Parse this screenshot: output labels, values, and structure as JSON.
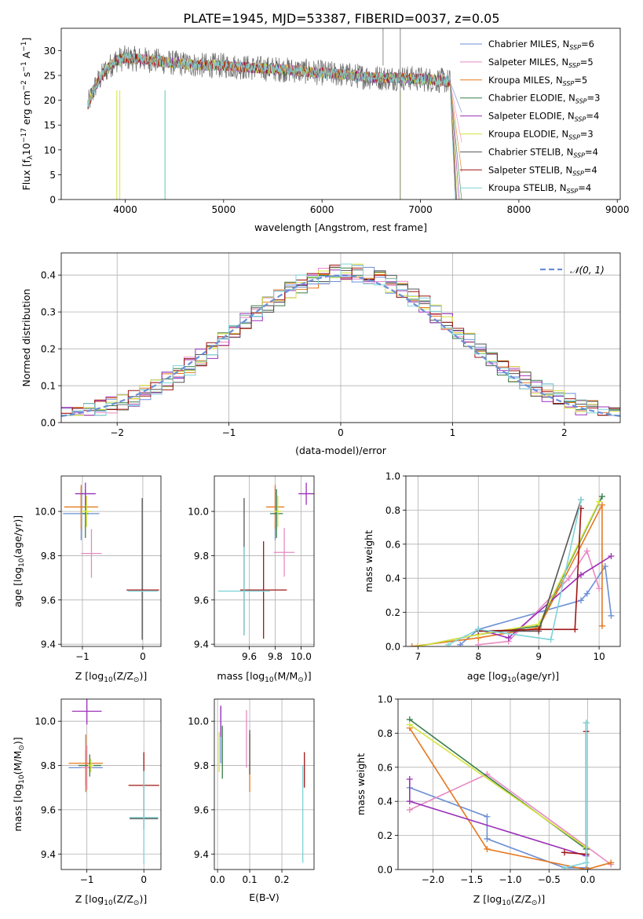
{
  "figure_title": "PLATE=1945, MJD=53387, FIBERID=0037, z=0.05",
  "legend": {
    "items": [
      {
        "label": "Chabrier MILES, N",
        "sub": "SSP",
        "suffix": "=6",
        "color": "#6b8fd6"
      },
      {
        "label": "Salpeter MILES, N",
        "sub": "SSP",
        "suffix": "=5",
        "color": "#e78ac3"
      },
      {
        "label": "Kroupa MILES, N",
        "sub": "SSP",
        "suffix": "=5",
        "color": "#e6781e"
      },
      {
        "label": "Chabrier ELODIE, N",
        "sub": "SSP",
        "suffix": "=3",
        "color": "#3a7d4a"
      },
      {
        "label": "Salpeter ELODIE, N",
        "sub": "SSP",
        "suffix": "=4",
        "color": "#9b30b8"
      },
      {
        "label": "Kroupa ELODIE, N",
        "sub": "SSP",
        "suffix": "=3",
        "color": "#d6e43c"
      },
      {
        "label": "Chabrier STELIB, N",
        "sub": "SSP",
        "suffix": "=4",
        "color": "#555555"
      },
      {
        "label": "Salpeter STELIB, N",
        "sub": "SSP",
        "suffix": "=4",
        "color": "#a01414"
      },
      {
        "label": "Kroupa STELIB, N",
        "sub": "SSP",
        "suffix": "=4",
        "color": "#7fd4d8"
      }
    ]
  },
  "chart_data": [
    {
      "id": "spectrum",
      "type": "line",
      "xlabel": "wavelength [Angstrom, rest frame]",
      "ylabel": "Flux [f",
      "ylabel_parts": {
        "lambda_sub": "λ",
        "unit": "10",
        "exp1": "−17",
        "mid": " erg cm",
        "exp2": "−2",
        "mid2": " s",
        "exp3": "−1",
        "mid3": " A",
        "exp4": "−1",
        "end": "]"
      },
      "xlim": [
        3350,
        9030
      ],
      "ylim": [
        0,
        34.5
      ],
      "xticks": [
        4000,
        5000,
        6000,
        7000,
        8000,
        9000
      ],
      "yticks": [
        0,
        5,
        10,
        15,
        20,
        25,
        30
      ],
      "grid": false,
      "legend_placement": "top-right",
      "continuum": {
        "x": [
          3620,
          3700,
          3800,
          3900,
          4000,
          4200,
          4500,
          4800,
          5000,
          5300,
          5600,
          6000,
          6300,
          6600,
          6800,
          7000,
          7200,
          7400
        ],
        "y": [
          19,
          23,
          26,
          28,
          28.5,
          28.2,
          27.5,
          27,
          27,
          26.5,
          26.2,
          25.5,
          25,
          24.5,
          24.5,
          24.3,
          24,
          23.5
        ]
      }
    },
    {
      "id": "residuals",
      "type": "step",
      "xlabel": "(data-model)/error",
      "ylabel": "Normed distribution",
      "xlim": [
        -2.5,
        2.5
      ],
      "ylim": [
        0,
        0.46
      ],
      "xticks": [
        -2,
        -1,
        0,
        1,
        2
      ],
      "yticks": [
        0.0,
        0.1,
        0.2,
        0.3,
        0.4
      ],
      "grid": true,
      "bin_width": 0.1,
      "gaussian_label": "𝒩(0, 1)",
      "gaussian_color": "#6b8fd6",
      "legend_placement": "top-right"
    },
    {
      "id": "age-vs-z",
      "type": "errorbar",
      "xlabel": "Z [log",
      "xlabel_tail": "(Z/Z",
      "ylabel": "age  [log",
      "ylabel_tail": "(age/yr)]",
      "xlim": [
        -1.35,
        0.3
      ],
      "ylim": [
        9.39,
        10.16
      ],
      "xticks": [
        -1,
        0
      ],
      "yticks": [
        9.4,
        9.6,
        9.8,
        10.0
      ],
      "grid": true,
      "points": [
        {
          "x": -1.02,
          "y": 9.99,
          "xerr": 0.3,
          "yerr": 0.12,
          "color": "#6b8fd6"
        },
        {
          "x": -0.85,
          "y": 9.81,
          "xerr": 0.17,
          "yerr": 0.11,
          "color": "#e78ac3"
        },
        {
          "x": -1.02,
          "y": 10.02,
          "xerr": 0.28,
          "yerr": 0.1,
          "color": "#e6781e"
        },
        {
          "x": -0.95,
          "y": 9.99,
          "xerr": 0.05,
          "yerr": 0.11,
          "color": "#3a7d4a"
        },
        {
          "x": -0.95,
          "y": 10.08,
          "xerr": 0.17,
          "yerr": 0.05,
          "color": "#9b30b8"
        },
        {
          "x": -0.93,
          "y": 10.0,
          "xerr": 0.08,
          "yerr": 0.07,
          "color": "#d6e43c"
        },
        {
          "x": -0.01,
          "y": 9.74,
          "xerr": 0.0,
          "yerr": 0.32,
          "color": "#555555"
        },
        {
          "x": 0.0,
          "y": 9.645,
          "xerr": 0.27,
          "yerr": 0.0,
          "color": "#a01414"
        },
        {
          "x": 0.0,
          "y": 9.64,
          "xerr": 0.25,
          "yerr": 0.0,
          "color": "#7fd4d8"
        }
      ]
    },
    {
      "id": "age-vs-mass",
      "type": "errorbar",
      "xlabel": "mass [log",
      "xlabel_tail": "(M/M",
      "xlim": [
        9.33,
        10.1
      ],
      "ylim": [
        9.39,
        10.16
      ],
      "xticks": [
        9.6,
        9.8,
        10.0
      ],
      "yticks": [
        9.4,
        9.6,
        9.8,
        10.0
      ],
      "grid": true,
      "points": [
        {
          "x": 9.8,
          "y": 9.99,
          "xerr": 0.02,
          "yerr": 0.12,
          "color": "#6b8fd6"
        },
        {
          "x": 9.87,
          "y": 9.815,
          "xerr": 0.08,
          "yerr": 0.11,
          "color": "#e78ac3"
        },
        {
          "x": 9.8,
          "y": 10.02,
          "xerr": 0.07,
          "yerr": 0.1,
          "color": "#e6781e"
        },
        {
          "x": 9.81,
          "y": 9.99,
          "xerr": 0.05,
          "yerr": 0.11,
          "color": "#3a7d4a"
        },
        {
          "x": 10.04,
          "y": 10.08,
          "xerr": 0.06,
          "yerr": 0.05,
          "color": "#9b30b8"
        },
        {
          "x": 9.82,
          "y": 10.0,
          "xerr": 0.03,
          "yerr": 0.07,
          "color": "#d6e43c"
        },
        {
          "x": 9.56,
          "y": 9.75,
          "xerr": 0.0,
          "yerr": 0.31,
          "color": "#555555"
        },
        {
          "x": 9.71,
          "y": 9.645,
          "xerr": 0.18,
          "yerr": 0.22,
          "color": "#a01414"
        },
        {
          "x": 9.56,
          "y": 9.64,
          "xerr": 0.2,
          "yerr": 0.2,
          "color": "#7fd4d8"
        }
      ]
    },
    {
      "id": "massweight-vs-age",
      "type": "line",
      "xlabel": "age  [log",
      "xlabel_tail": "(age/yr)]",
      "ylabel": "mass weight",
      "xlim": [
        6.8,
        10.35
      ],
      "ylim": [
        0,
        1.0
      ],
      "xticks": [
        7,
        8,
        9,
        10
      ],
      "yticks": [
        0.0,
        0.2,
        0.4,
        0.6,
        0.8,
        1.0
      ],
      "grid": true,
      "series": [
        {
          "color": "#6b8fd6",
          "x": [
            7.7,
            8.0,
            9.7,
            9.8,
            10.1,
            10.2
          ],
          "y": [
            0.01,
            0.1,
            0.27,
            0.31,
            0.47,
            0.18
          ]
        },
        {
          "color": "#e78ac3",
          "x": [
            8.0,
            8.5,
            9.5,
            9.8,
            10.0
          ],
          "y": [
            0.01,
            0.03,
            0.4,
            0.56,
            0.34
          ]
        },
        {
          "color": "#e6781e",
          "x": [
            6.9,
            8.0,
            9.0,
            10.05,
            10.05
          ],
          "y": [
            0.0,
            0.05,
            0.11,
            0.83,
            0.12
          ]
        },
        {
          "color": "#3a7d4a",
          "x": [
            7.0,
            8.0,
            9.0,
            10.05
          ],
          "y": [
            0.0,
            0.07,
            0.12,
            0.88
          ]
        },
        {
          "color": "#9b30b8",
          "x": [
            8.0,
            8.5,
            9.7,
            10.2
          ],
          "y": [
            0.1,
            0.05,
            0.42,
            0.53
          ]
        },
        {
          "color": "#d6e43c",
          "x": [
            7.0,
            8.0,
            9.0,
            10.0
          ],
          "y": [
            0.0,
            0.07,
            0.13,
            0.85
          ]
        },
        {
          "color": "#555555",
          "x": [
            8.0,
            9.0,
            9.7
          ],
          "y": [
            0.09,
            0.09,
            0.86
          ]
        },
        {
          "color": "#a01414",
          "x": [
            8.0,
            9.0,
            9.6,
            9.7
          ],
          "y": [
            0.09,
            0.1,
            0.1,
            0.81
          ]
        },
        {
          "color": "#7fd4d8",
          "x": [
            7.5,
            8.0,
            9.2,
            9.7
          ],
          "y": [
            0.01,
            0.1,
            0.04,
            0.86
          ]
        }
      ]
    },
    {
      "id": "mass-vs-z",
      "type": "errorbar",
      "xlabel": "Z [log",
      "xlabel_tail": "(Z/Z",
      "ylabel": "mass [log",
      "ylabel_tail": "(M/M",
      "xlim": [
        -1.45,
        0.3
      ],
      "ylim": [
        9.33,
        10.1
      ],
      "xticks": [
        -1,
        0
      ],
      "yticks": [
        9.4,
        9.6,
        9.8,
        10.0
      ],
      "grid": true,
      "points": [
        {
          "x": -1.02,
          "y": 9.79,
          "xerr": 0.3,
          "yerr": 0.08,
          "color": "#6b8fd6"
        },
        {
          "x": -1.0,
          "y": 9.79,
          "xerr": 0.1,
          "yerr": 0.1,
          "color": "#e78ac3"
        },
        {
          "x": -1.02,
          "y": 9.81,
          "xerr": 0.3,
          "yerr": 0.13,
          "color": "#e6781e"
        },
        {
          "x": -0.95,
          "y": 9.8,
          "xerr": 0.2,
          "yerr": 0.05,
          "color": "#3a7d4a"
        },
        {
          "x": -1.0,
          "y": 10.045,
          "xerr": 0.26,
          "yerr": 0.06,
          "color": "#9b30b8"
        },
        {
          "x": -0.93,
          "y": 9.8,
          "xerr": 0.05,
          "yerr": 0.03,
          "color": "#d6e43c"
        },
        {
          "x": 0.0,
          "y": 9.56,
          "xerr": 0.25,
          "yerr": 0.05,
          "color": "#555555"
        },
        {
          "x": 0.0,
          "y": 9.71,
          "xerr": 0.27,
          "yerr": 0.15,
          "color": "#a01414"
        },
        {
          "x": 0.0,
          "y": 9.565,
          "xerr": 0.25,
          "yerr": 0.21,
          "color": "#7fd4d8"
        }
      ]
    },
    {
      "id": "mass-vs-ebv",
      "type": "errorbar",
      "xlabel": "E(B-V)",
      "xlim": [
        -0.01,
        0.3
      ],
      "ylim": [
        9.33,
        10.1
      ],
      "xticks": [
        0.0,
        0.1,
        0.2
      ],
      "xtick_labels": [
        "0.0",
        "0.1",
        "0.2"
      ],
      "yticks": [
        9.4,
        9.6,
        9.8,
        10.0
      ],
      "grid": true,
      "points": [
        {
          "x": 0.01,
          "y": 9.94,
          "xerr": 0.0,
          "yerr": 0.13,
          "color": "#6b8fd6"
        },
        {
          "x": 0.09,
          "y": 9.92,
          "xerr": 0.0,
          "yerr": 0.13,
          "color": "#e78ac3"
        },
        {
          "x": 0.1,
          "y": 9.81,
          "xerr": 0.0,
          "yerr": 0.13,
          "color": "#e6781e"
        },
        {
          "x": 0.015,
          "y": 9.86,
          "xerr": 0.0,
          "yerr": 0.12,
          "color": "#3a7d4a"
        },
        {
          "x": 0.01,
          "y": 10.0,
          "xerr": 0.0,
          "yerr": 0.07,
          "color": "#9b30b8"
        },
        {
          "x": 0.005,
          "y": 9.86,
          "xerr": 0.0,
          "yerr": 0.09,
          "color": "#d6e43c"
        },
        {
          "x": 0.1,
          "y": 9.86,
          "xerr": 0.0,
          "yerr": 0.1,
          "color": "#555555"
        },
        {
          "x": 0.27,
          "y": 9.78,
          "xerr": 0.0,
          "yerr": 0.08,
          "color": "#a01414"
        },
        {
          "x": 0.265,
          "y": 9.58,
          "xerr": 0.0,
          "yerr": 0.22,
          "color": "#7fd4d8"
        }
      ]
    },
    {
      "id": "massweight-vs-z",
      "type": "line",
      "xlabel": "Z [log",
      "xlabel_tail": "(Z/Z",
      "ylabel": "mass weight",
      "xlim": [
        -2.45,
        0.42
      ],
      "ylim": [
        0,
        1.0
      ],
      "xticks": [
        -2.0,
        -1.5,
        -1.0,
        -0.5,
        0.0
      ],
      "xtick_labels": [
        "−2.0",
        "−1.5",
        "−1.0",
        "−0.5",
        "0.0"
      ],
      "yticks": [
        0.0,
        0.2,
        0.4,
        0.6,
        0.8,
        1.0
      ],
      "grid": true,
      "series": [
        {
          "color": "#6b8fd6",
          "x": [
            -2.3,
            -1.3,
            -1.3,
            -0.3,
            -0.02
          ],
          "y": [
            0.48,
            0.31,
            0.18,
            0.01,
            0.01
          ]
        },
        {
          "color": "#e78ac3",
          "x": [
            -2.3,
            -1.3,
            0.3
          ],
          "y": [
            0.35,
            0.56,
            0.03
          ]
        },
        {
          "color": "#e6781e",
          "x": [
            -2.3,
            -1.3,
            -0.02,
            0.3
          ],
          "y": [
            0.83,
            0.12,
            0.0,
            0.04
          ]
        },
        {
          "color": "#3a7d4a",
          "x": [
            -2.3,
            -0.02
          ],
          "y": [
            0.88,
            0.12
          ]
        },
        {
          "color": "#9b30b8",
          "x": [
            -2.3,
            -2.3,
            -0.02
          ],
          "y": [
            0.53,
            0.4,
            0.08
          ]
        },
        {
          "color": "#d6e43c",
          "x": [
            -2.3,
            -0.02
          ],
          "y": [
            0.85,
            0.13
          ]
        },
        {
          "color": "#555555",
          "x": [
            -0.02,
            -0.02
          ],
          "y": [
            0.86,
            0.09
          ]
        },
        {
          "color": "#a01414",
          "x": [
            -0.3,
            -0.02,
            -0.02
          ],
          "y": [
            0.1,
            0.09,
            0.81
          ]
        },
        {
          "color": "#7fd4d8",
          "x": [
            -0.3,
            -0.02,
            -0.02
          ],
          "y": [
            0.01,
            0.04,
            0.86
          ]
        }
      ]
    }
  ]
}
